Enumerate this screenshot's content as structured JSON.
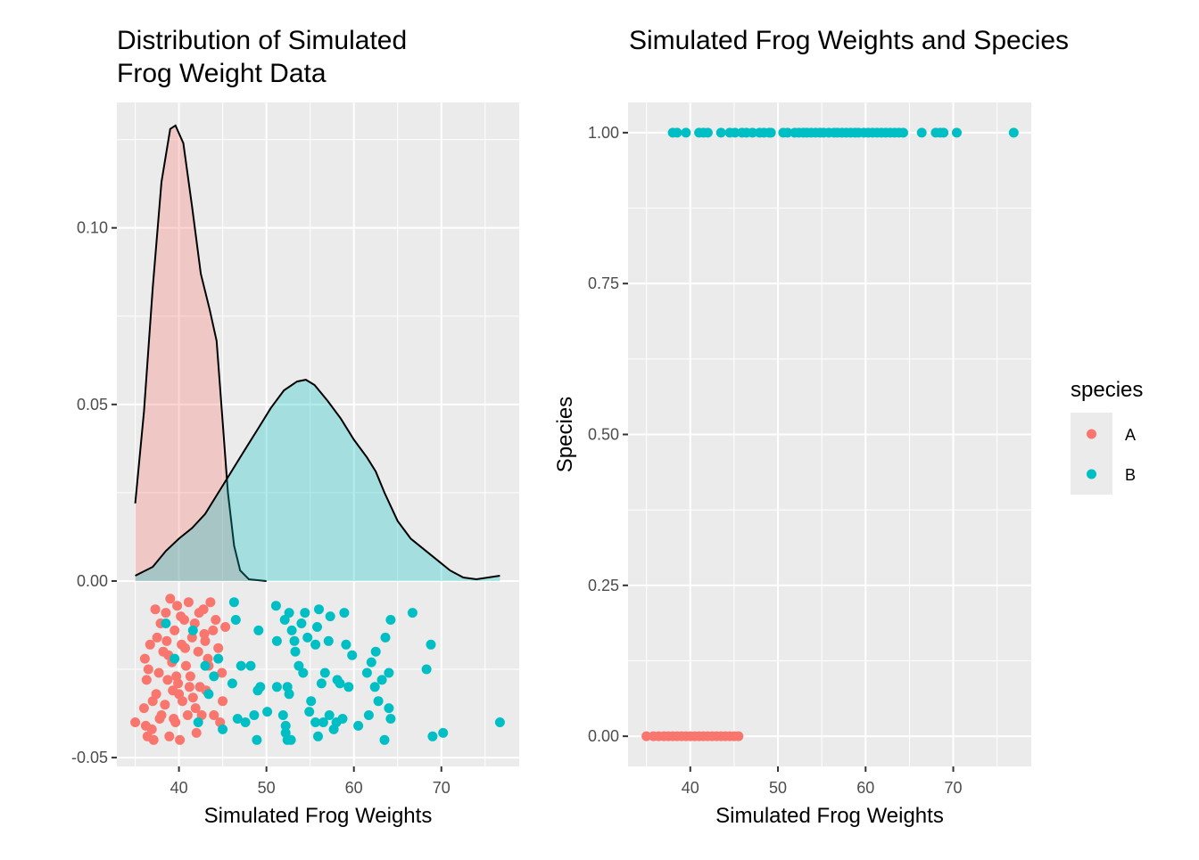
{
  "colors": {
    "A": "#F8766D",
    "B": "#00BFC4",
    "panel": "#EBEBEB",
    "grid": "#FFFFFF",
    "tick_mark": "#333333"
  },
  "legend": {
    "title": "species",
    "items": [
      "A",
      "B"
    ]
  },
  "chart_data": [
    {
      "type": "area",
      "overlay": "scatter",
      "title_lines": [
        "Distribution of Simulated",
        "Frog Weight Data"
      ],
      "xlabel": "Simulated Frog Weights",
      "ylabel": "",
      "xlim": [
        32.9,
        78.9
      ],
      "ylim": [
        -0.0525,
        0.1355
      ],
      "x_ticks": [
        40,
        50,
        60,
        70
      ],
      "x_tick_labels": [
        "40",
        "50",
        "60",
        "70"
      ],
      "y_ticks": [
        -0.05,
        0,
        0.05,
        0.1
      ],
      "y_tick_labels": [
        "-0.05",
        "0.00",
        "0.05",
        "0.10"
      ],
      "grid": true,
      "series": [
        {
          "name": "A",
          "density": [
            [
              35.0,
              0.022
            ],
            [
              36.0,
              0.048
            ],
            [
              37.0,
              0.083
            ],
            [
              38.0,
              0.113
            ],
            [
              39.0,
              0.128
            ],
            [
              39.6,
              0.129
            ],
            [
              40.5,
              0.124
            ],
            [
              41.5,
              0.106
            ],
            [
              42.5,
              0.087
            ],
            [
              43.5,
              0.077
            ],
            [
              44.3,
              0.068
            ],
            [
              45.0,
              0.045
            ],
            [
              45.6,
              0.025
            ],
            [
              46.3,
              0.01
            ],
            [
              47.0,
              0.003
            ],
            [
              48.0,
              0.0005
            ],
            [
              50.0,
              0.0
            ]
          ],
          "points": [
            [
              35.0,
              -0.04
            ],
            [
              36.0,
              -0.036
            ],
            [
              36.2,
              -0.041
            ],
            [
              36.4,
              -0.044
            ],
            [
              36.1,
              -0.022
            ],
            [
              36.3,
              -0.028
            ],
            [
              36.5,
              -0.025
            ],
            [
              36.7,
              -0.018
            ],
            [
              36.9,
              -0.042
            ],
            [
              37.1,
              -0.045
            ],
            [
              37.3,
              -0.008
            ],
            [
              37.4,
              -0.032
            ],
            [
              37.5,
              -0.016
            ],
            [
              37.7,
              -0.026
            ],
            [
              37.9,
              -0.012
            ],
            [
              38.0,
              -0.038
            ],
            [
              38.2,
              -0.02
            ],
            [
              38.4,
              -0.035
            ],
            [
              38.5,
              -0.009
            ],
            [
              38.7,
              -0.028
            ],
            [
              38.9,
              -0.044
            ],
            [
              39.0,
              -0.005
            ],
            [
              39.2,
              -0.023
            ],
            [
              39.3,
              -0.031
            ],
            [
              39.5,
              -0.014
            ],
            [
              39.6,
              -0.04
            ],
            [
              39.8,
              -0.007
            ],
            [
              39.9,
              -0.029
            ],
            [
              40.1,
              -0.045
            ],
            [
              40.3,
              -0.018
            ],
            [
              40.4,
              -0.034
            ],
            [
              40.6,
              -0.011
            ],
            [
              40.8,
              -0.024
            ],
            [
              41.0,
              -0.038
            ],
            [
              41.1,
              -0.006
            ],
            [
              41.3,
              -0.027
            ],
            [
              41.5,
              -0.016
            ],
            [
              41.6,
              -0.033
            ],
            [
              41.8,
              -0.012
            ],
            [
              42.0,
              -0.043
            ],
            [
              42.2,
              -0.02
            ],
            [
              42.4,
              -0.03
            ],
            [
              42.6,
              -0.038
            ],
            [
              42.8,
              -0.008
            ],
            [
              43.0,
              -0.017
            ],
            [
              43.1,
              -0.031
            ],
            [
              43.4,
              -0.024
            ],
            [
              43.6,
              -0.006
            ],
            [
              43.9,
              -0.014
            ],
            [
              44.0,
              -0.038
            ],
            [
              44.2,
              -0.011
            ],
            [
              44.5,
              -0.019
            ],
            [
              44.7,
              -0.04
            ],
            [
              44.9,
              -0.026
            ],
            [
              45.0,
              -0.034
            ],
            [
              45.3,
              -0.013
            ],
            [
              37.0,
              -0.034
            ],
            [
              38.6,
              -0.017
            ],
            [
              39.4,
              -0.039
            ],
            [
              40.7,
              -0.019
            ],
            [
              41.9,
              -0.036
            ],
            [
              42.3,
              -0.009
            ],
            [
              43.3,
              -0.022
            ],
            [
              37.8,
              -0.039
            ],
            [
              38.8,
              -0.021
            ],
            [
              40.2,
              -0.01
            ],
            [
              41.2,
              -0.03
            ],
            [
              42.9,
              -0.015
            ],
            [
              39.7,
              -0.027
            ],
            [
              40.0,
              -0.032
            ]
          ]
        },
        {
          "name": "B",
          "density": [
            [
              35.0,
              0.0015
            ],
            [
              37.0,
              0.004
            ],
            [
              38.5,
              0.0085
            ],
            [
              40.0,
              0.012
            ],
            [
              41.5,
              0.015
            ],
            [
              43.0,
              0.019
            ],
            [
              44.5,
              0.025
            ],
            [
              46.0,
              0.031
            ],
            [
              47.5,
              0.037
            ],
            [
              49.0,
              0.043
            ],
            [
              50.5,
              0.049
            ],
            [
              52.0,
              0.054
            ],
            [
              53.5,
              0.0565
            ],
            [
              54.5,
              0.057
            ],
            [
              55.5,
              0.0555
            ],
            [
              57.0,
              0.051
            ],
            [
              58.5,
              0.046
            ],
            [
              60.0,
              0.04
            ],
            [
              61.5,
              0.035
            ],
            [
              62.5,
              0.031
            ],
            [
              63.5,
              0.025
            ],
            [
              65.0,
              0.017
            ],
            [
              66.5,
              0.012
            ],
            [
              68.0,
              0.009
            ],
            [
              69.5,
              0.006
            ],
            [
              71.0,
              0.003
            ],
            [
              72.5,
              0.001
            ],
            [
              74.0,
              0.0005
            ],
            [
              76.7,
              0.0015
            ]
          ],
          "points": [
            [
              38.5,
              -0.012
            ],
            [
              39.5,
              -0.022
            ],
            [
              41.6,
              -0.014
            ],
            [
              42.2,
              -0.04
            ],
            [
              43.0,
              -0.024
            ],
            [
              43.4,
              -0.032
            ],
            [
              44.0,
              -0.027
            ],
            [
              44.5,
              -0.022
            ],
            [
              45.0,
              -0.042
            ],
            [
              46.1,
              -0.029
            ],
            [
              46.3,
              -0.006
            ],
            [
              46.5,
              -0.011
            ],
            [
              46.7,
              -0.039
            ],
            [
              47.1,
              -0.024
            ],
            [
              47.6,
              -0.04
            ],
            [
              48.2,
              -0.024
            ],
            [
              48.6,
              -0.038
            ],
            [
              48.9,
              -0.045
            ],
            [
              49.0,
              -0.031
            ],
            [
              49.1,
              -0.014
            ],
            [
              49.3,
              -0.03
            ],
            [
              50.1,
              -0.037
            ],
            [
              51.1,
              -0.007
            ],
            [
              51.2,
              -0.017
            ],
            [
              51.2,
              -0.03
            ],
            [
              51.9,
              -0.038
            ],
            [
              52.1,
              -0.011
            ],
            [
              52.2,
              -0.041
            ],
            [
              52.2,
              -0.043
            ],
            [
              52.4,
              -0.045
            ],
            [
              52.4,
              -0.03
            ],
            [
              52.6,
              -0.009
            ],
            [
              52.6,
              -0.032
            ],
            [
              52.8,
              -0.045
            ],
            [
              52.9,
              -0.014
            ],
            [
              53.2,
              -0.017
            ],
            [
              53.3,
              -0.02
            ],
            [
              53.7,
              -0.024
            ],
            [
              54.0,
              -0.012
            ],
            [
              54.2,
              -0.026
            ],
            [
              54.4,
              -0.009
            ],
            [
              54.7,
              -0.016
            ],
            [
              54.9,
              -0.037
            ],
            [
              55.1,
              -0.034
            ],
            [
              55.6,
              -0.04
            ],
            [
              55.6,
              -0.018
            ],
            [
              55.8,
              -0.013
            ],
            [
              55.9,
              -0.044
            ],
            [
              56.0,
              -0.008
            ],
            [
              56.3,
              -0.029
            ],
            [
              56.5,
              -0.04
            ],
            [
              56.7,
              -0.026
            ],
            [
              57.1,
              -0.017
            ],
            [
              57.2,
              -0.038
            ],
            [
              57.3,
              -0.01
            ],
            [
              57.7,
              -0.042
            ],
            [
              58.0,
              -0.04
            ],
            [
              58.1,
              -0.028
            ],
            [
              58.4,
              -0.029
            ],
            [
              58.7,
              -0.039
            ],
            [
              58.9,
              -0.009
            ],
            [
              59.1,
              -0.018
            ],
            [
              59.4,
              -0.03
            ],
            [
              59.8,
              -0.021
            ],
            [
              60.5,
              -0.041
            ],
            [
              61.5,
              -0.026
            ],
            [
              61.7,
              -0.038
            ],
            [
              62.0,
              -0.023
            ],
            [
              62.4,
              -0.03
            ],
            [
              62.5,
              -0.02
            ],
            [
              62.8,
              -0.034
            ],
            [
              63.2,
              -0.028
            ],
            [
              63.5,
              -0.045
            ],
            [
              63.6,
              -0.016
            ],
            [
              64.0,
              -0.036
            ],
            [
              64.0,
              -0.026
            ],
            [
              64.2,
              -0.011
            ],
            [
              64.2,
              -0.039
            ],
            [
              66.7,
              -0.009
            ],
            [
              68.3,
              -0.025
            ],
            [
              68.8,
              -0.018
            ],
            [
              69.0,
              -0.044
            ],
            [
              70.2,
              -0.043
            ],
            [
              76.7,
              -0.04
            ]
          ]
        }
      ]
    },
    {
      "type": "scatter",
      "title_lines": [
        "Simulated Frog Weights and Species"
      ],
      "xlabel": "Simulated Frog Weights",
      "ylabel": "Species",
      "xlim": [
        32.9,
        78.9
      ],
      "ylim": [
        -0.05,
        1.05
      ],
      "x_ticks": [
        40,
        50,
        60,
        70
      ],
      "x_tick_labels": [
        "40",
        "50",
        "60",
        "70"
      ],
      "y_ticks": [
        0,
        0.25,
        0.5,
        0.75,
        1
      ],
      "y_tick_labels": [
        "0.00",
        "0.25",
        "0.50",
        "0.75",
        "1.00"
      ],
      "grid": true,
      "series": [
        {
          "name": "A",
          "y": 0,
          "x": [
            35.0,
            35.8,
            36.4,
            37.0,
            37.5,
            38.0,
            38.5,
            39.0,
            39.5,
            40.0,
            40.5,
            41.0,
            41.5,
            42.0,
            42.5,
            43.0,
            43.5,
            44.0,
            44.5,
            45.0,
            45.5
          ]
        },
        {
          "name": "B",
          "y": 1,
          "x": [
            38.0,
            38.5,
            39.5,
            41.0,
            41.5,
            42.0,
            43.5,
            44.5,
            45.1,
            45.9,
            46.4,
            47.1,
            47.9,
            48.4,
            49.0,
            49.2,
            50.6,
            51.1,
            51.9,
            52.4,
            52.9,
            53.3,
            53.8,
            54.3,
            54.8,
            55.2,
            55.8,
            56.4,
            56.8,
            57.3,
            57.8,
            58.3,
            58.8,
            59.2,
            59.8,
            60.3,
            60.8,
            61.3,
            61.8,
            62.3,
            62.8,
            63.3,
            63.8,
            64.3,
            66.4,
            68.0,
            68.5,
            68.9,
            70.4,
            76.9
          ]
        }
      ]
    }
  ]
}
